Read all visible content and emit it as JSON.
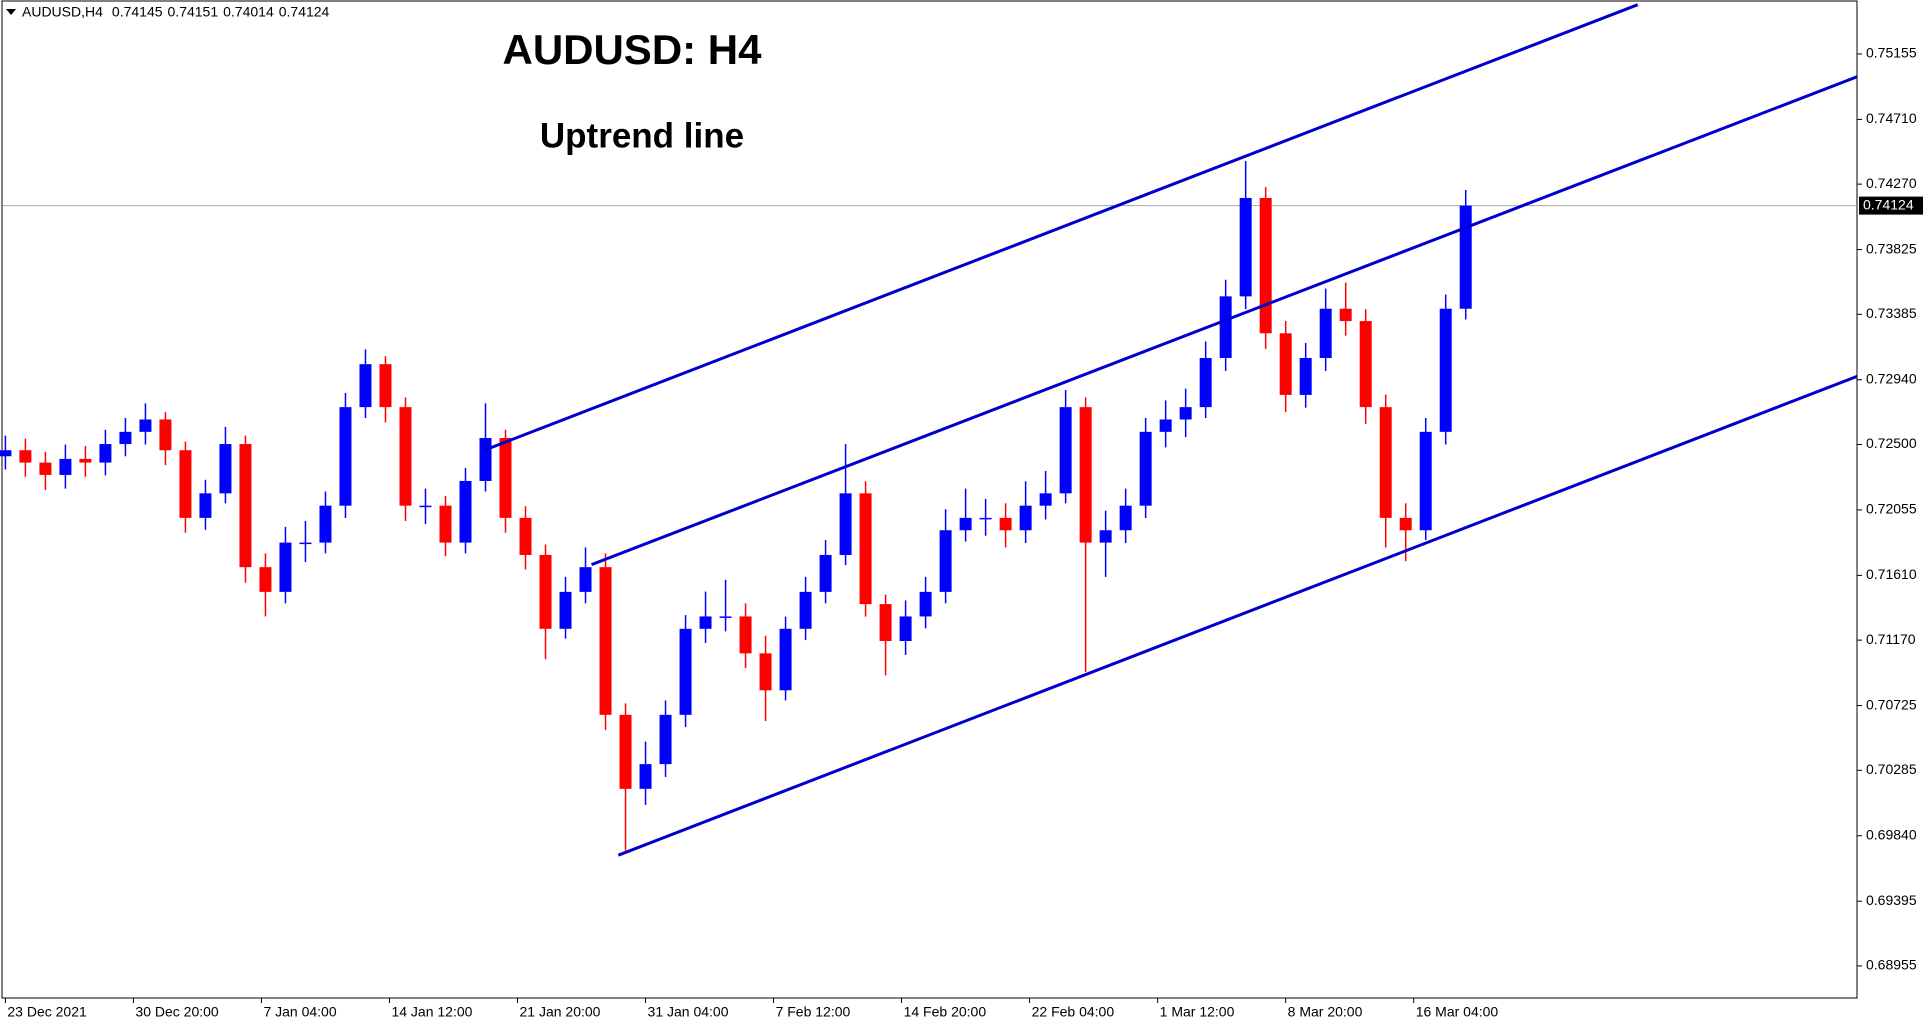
{
  "chart_data": {
    "type": "candlestick",
    "symbol": "AUDUSD,H4",
    "ohlc_header": [
      0.74145,
      0.74151,
      0.74014,
      0.74124
    ],
    "title": "AUDUSD: H4",
    "subtitle": "Uptrend line",
    "current_price": 0.74124,
    "up_color": "#0000ff",
    "down_color": "#ff0000",
    "trend_color": "#0000cd",
    "xlim": [
      -0.6,
      462.8
    ],
    "xticks": [
      {
        "value": 0,
        "label": "23 Dec 2021"
      },
      {
        "value": 32,
        "label": "30 Dec 20:00"
      },
      {
        "value": 64,
        "label": "7 Jan 04:00"
      },
      {
        "value": 96,
        "label": "14 Jan 12:00"
      },
      {
        "value": 128,
        "label": "21 Jan 20:00"
      },
      {
        "value": 160,
        "label": "31 Jan 04:00"
      },
      {
        "value": 192,
        "label": "7 Feb 12:00"
      },
      {
        "value": 224,
        "label": "14 Feb 20:00"
      },
      {
        "value": 256,
        "label": "22 Feb 04:00"
      },
      {
        "value": 288,
        "label": "1 Mar 12:00"
      },
      {
        "value": 320,
        "label": "8 Mar 20:00"
      },
      {
        "value": 352,
        "label": "16 Mar 04:00"
      }
    ],
    "ylim": [
      0.68737,
      0.75515
    ],
    "yticks": [
      0.75155,
      {
        "value": 0.7471,
        "label": "0.74710"
      },
      {
        "value": 0.7427,
        "label": "0.74270"
      },
      0.73825,
      0.73385,
      {
        "value": 0.7294,
        "label": "0.72940"
      },
      {
        "value": 0.725,
        "label": "0.72500"
      },
      0.72055,
      {
        "value": 0.7161,
        "label": "0.71610"
      },
      {
        "value": 0.7117,
        "label": "0.71170"
      },
      0.70725,
      0.70285,
      {
        "value": 0.6984,
        "label": "0.69840"
      },
      0.69395,
      0.68955
    ],
    "x": [
      0,
      5,
      10,
      15,
      20,
      25,
      30,
      35,
      40,
      45,
      50,
      55,
      60,
      65,
      70,
      75,
      80,
      85,
      90,
      95,
      100,
      105,
      110,
      115,
      120,
      125,
      130,
      135,
      140,
      145,
      150,
      155,
      160,
      165,
      170,
      175,
      180,
      185,
      190,
      195,
      200,
      205,
      210,
      215,
      220,
      225,
      230,
      235,
      240,
      245,
      250,
      255,
      260,
      265,
      270,
      275,
      280,
      285,
      290,
      295,
      300,
      305,
      310,
      315,
      320,
      325,
      330,
      335,
      340,
      345,
      350,
      355,
      360,
      365
    ],
    "open": [
      0.7242,
      0.72461,
      0.72377,
      0.72293,
      0.72402,
      0.72377,
      0.72503,
      0.72586,
      0.7267,
      0.72461,
      0.72001,
      0.72168,
      0.72503,
      0.71666,
      0.71498,
      0.71833,
      0.71833,
      0.72084,
      0.72754,
      0.73046,
      0.72754,
      0.72084,
      0.72084,
      0.71833,
      0.72252,
      0.72544,
      0.72001,
      0.71749,
      0.71247,
      0.71498,
      0.71666,
      0.70662,
      0.70159,
      0.70327,
      0.70662,
      0.71247,
      0.71331,
      0.71331,
      0.7108,
      0.70829,
      0.71247,
      0.71498,
      0.71749,
      0.72168,
      0.71415,
      0.71164,
      0.71331,
      0.71498,
      0.71917,
      0.72001,
      0.72001,
      0.71917,
      0.72084,
      0.72168,
      0.72754,
      0.71833,
      0.71917,
      0.72084,
      0.72586,
      0.7267,
      0.72754,
      0.73088,
      0.73507,
      0.74176,
      0.73256,
      0.72837,
      0.73088,
      0.73423,
      0.73339,
      0.72754,
      0.72001,
      0.71917,
      0.72586,
      0.73423
    ],
    "high": [
      0.7256,
      0.7254,
      0.7245,
      0.725,
      0.7249,
      0.726,
      0.7268,
      0.7278,
      0.7272,
      0.7252,
      0.7226,
      0.7262,
      0.7256,
      0.7176,
      0.7194,
      0.7198,
      0.7218,
      0.7285,
      0.73147,
      0.731,
      0.7282,
      0.722,
      0.7215,
      0.7234,
      0.7278,
      0.726,
      0.7208,
      0.7182,
      0.716,
      0.718,
      0.7176,
      0.7074,
      0.7048,
      0.7076,
      0.7134,
      0.715,
      0.7158,
      0.7142,
      0.712,
      0.7133,
      0.716,
      0.7185,
      0.72503,
      0.7225,
      0.7148,
      0.7144,
      0.716,
      0.7206,
      0.722,
      0.7213,
      0.721,
      0.7225,
      0.7232,
      0.7287,
      0.7282,
      0.7205,
      0.722,
      0.7268,
      0.728,
      0.7288,
      0.732,
      0.7362,
      0.74427,
      0.7425,
      0.7334,
      0.7319,
      0.7356,
      0.736,
      0.7342,
      0.7284,
      0.721,
      0.7268,
      0.7352,
      0.7423
    ],
    "low": [
      0.7233,
      0.7228,
      0.7219,
      0.722,
      0.7228,
      0.7229,
      0.7242,
      0.725,
      0.7236,
      0.719,
      0.7192,
      0.721,
      0.7156,
      0.71331,
      0.7142,
      0.717,
      0.7176,
      0.72,
      0.7268,
      0.7265,
      0.7198,
      0.7196,
      0.7174,
      0.7176,
      0.7218,
      0.719,
      0.7165,
      0.7104,
      0.7118,
      0.7142,
      0.7056,
      0.69741,
      0.7005,
      0.7024,
      0.7058,
      0.7115,
      0.7123,
      0.7098,
      0.7062,
      0.7076,
      0.7117,
      0.7142,
      0.7168,
      0.7133,
      0.7093,
      0.7107,
      0.7125,
      0.7142,
      0.7184,
      0.7188,
      0.718,
      0.7183,
      0.7199,
      0.721,
      0.70954,
      0.716,
      0.7183,
      0.72,
      0.7248,
      0.7255,
      0.7268,
      0.73,
      0.7342,
      0.7315,
      0.7272,
      0.7275,
      0.73,
      0.7324,
      0.7264,
      0.718,
      0.71707,
      0.7185,
      0.725,
      0.7335
    ],
    "close": [
      0.72461,
      0.72377,
      0.72293,
      0.72402,
      0.72377,
      0.72503,
      0.72586,
      0.7267,
      0.72461,
      0.72001,
      0.72168,
      0.72503,
      0.71666,
      0.71498,
      0.71833,
      0.71833,
      0.72084,
      0.72754,
      0.73046,
      0.72754,
      0.72084,
      0.72084,
      0.71833,
      0.72252,
      0.72544,
      0.72001,
      0.71749,
      0.71247,
      0.71498,
      0.71666,
      0.70662,
      0.70159,
      0.70327,
      0.70662,
      0.71247,
      0.71331,
      0.71331,
      0.7108,
      0.70829,
      0.71247,
      0.71498,
      0.71749,
      0.72168,
      0.71415,
      0.71164,
      0.71331,
      0.71498,
      0.71917,
      0.72001,
      0.72001,
      0.71917,
      0.72084,
      0.72168,
      0.72754,
      0.71833,
      0.71917,
      0.72084,
      0.72586,
      0.7267,
      0.72754,
      0.73088,
      0.73507,
      0.74176,
      0.73256,
      0.72837,
      0.73088,
      0.73423,
      0.73339,
      0.72754,
      0.72001,
      0.71917,
      0.72586,
      0.73423,
      0.74124
    ],
    "trend_lines": [
      {
        "x": [
          119.7,
          408
        ],
        "y": [
          0.72461,
          0.7549
        ]
      },
      {
        "x": [
          146.5,
          462.8
        ],
        "y": [
          0.71683,
          0.75
        ]
      },
      {
        "x": [
          153.2,
          462.8
        ],
        "y": [
          0.69708,
          0.72963
        ]
      }
    ]
  }
}
